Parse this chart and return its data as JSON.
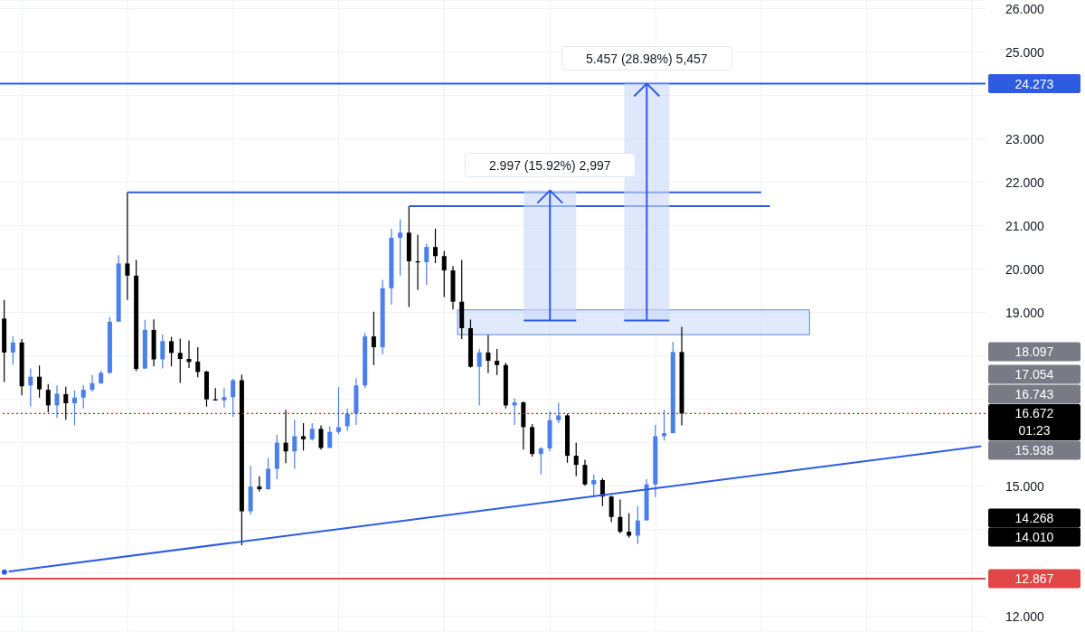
{
  "chart_data": {
    "type": "candlestick",
    "categories": [
      null,
      null,
      null,
      null,
      null,
      null,
      null,
      null,
      null,
      null,
      null,
      null,
      null,
      null,
      null,
      null,
      null,
      null,
      null,
      null,
      null,
      null,
      null,
      null,
      null,
      null,
      null,
      null,
      null,
      null,
      null,
      null,
      null,
      null,
      null,
      null,
      null,
      null,
      null,
      null,
      null,
      null,
      null,
      null,
      null,
      null,
      null,
      null,
      null,
      null,
      null,
      null,
      null,
      null,
      null,
      null,
      null,
      null,
      null,
      null,
      null,
      null,
      null,
      null,
      null,
      null,
      null,
      null,
      null,
      null,
      null,
      null,
      null,
      null,
      null,
      null,
      null,
      null,
      null,
      null,
      null,
      null,
      null,
      null,
      null,
      null,
      null,
      null,
      null,
      null,
      null,
      null,
      null,
      null,
      null,
      null,
      null,
      null,
      null,
      null,
      null,
      null,
      null,
      null,
      null,
      null,
      null,
      null,
      null,
      null,
      null,
      null
    ],
    "ohlc": [
      [
        18.86,
        19.29,
        17.4,
        18.08
      ],
      [
        18.08,
        18.45,
        17.8,
        18.31
      ],
      [
        18.31,
        18.39,
        17.09,
        17.3
      ],
      [
        17.32,
        17.71,
        16.83,
        17.52
      ],
      [
        17.52,
        17.78,
        17.04,
        17.23
      ],
      [
        17.22,
        17.35,
        16.7,
        16.86
      ],
      [
        16.86,
        17.32,
        16.57,
        17.13
      ],
      [
        17.12,
        17.29,
        16.53,
        16.91
      ],
      [
        16.91,
        17.21,
        16.4,
        17.04
      ],
      [
        17.04,
        17.33,
        16.79,
        17.22
      ],
      [
        17.22,
        17.56,
        17.18,
        17.37
      ],
      [
        17.37,
        17.66,
        17.35,
        17.61
      ],
      [
        17.61,
        18.9,
        17.59,
        18.79
      ],
      [
        18.79,
        20.32,
        18.79,
        20.13
      ],
      [
        20.13,
        21.77,
        19.29,
        19.85
      ],
      [
        19.85,
        20.21,
        17.65,
        17.7
      ],
      [
        17.71,
        18.83,
        17.7,
        18.6
      ],
      [
        18.6,
        18.84,
        17.76,
        17.92
      ],
      [
        17.92,
        18.5,
        17.71,
        18.34
      ],
      [
        18.34,
        18.44,
        17.76,
        18.07
      ],
      [
        18.07,
        18.4,
        17.38,
        17.93
      ],
      [
        17.93,
        18.36,
        17.72,
        17.86
      ],
      [
        17.87,
        18.2,
        17.51,
        17.63
      ],
      [
        17.64,
        17.66,
        16.83,
        17.0
      ],
      [
        17.0,
        17.26,
        16.97,
        16.98
      ],
      [
        16.98,
        17.26,
        16.81,
        17.05
      ],
      [
        17.05,
        17.48,
        16.6,
        17.44
      ],
      [
        17.44,
        17.57,
        13.64,
        14.42
      ],
      [
        14.42,
        15.47,
        14.34,
        14.99
      ],
      [
        14.99,
        15.23,
        14.88,
        14.93
      ],
      [
        14.93,
        15.65,
        14.92,
        15.4
      ],
      [
        15.4,
        16.18,
        15.16,
        16.0
      ],
      [
        16.0,
        16.76,
        15.53,
        15.8
      ],
      [
        15.8,
        16.53,
        15.4,
        16.15
      ],
      [
        16.15,
        16.45,
        15.82,
        16.08
      ],
      [
        16.08,
        16.45,
        16.05,
        16.32
      ],
      [
        16.32,
        16.4,
        15.84,
        15.88
      ],
      [
        15.88,
        16.38,
        15.88,
        16.25
      ],
      [
        16.25,
        17.28,
        16.2,
        16.36
      ],
      [
        16.38,
        16.79,
        16.27,
        16.67
      ],
      [
        16.67,
        17.49,
        16.41,
        17.32
      ],
      [
        17.32,
        18.53,
        17.26,
        18.45
      ],
      [
        18.45,
        19.02,
        17.79,
        18.2
      ],
      [
        18.2,
        19.75,
        18.04,
        19.56
      ],
      [
        19.56,
        20.93,
        19.18,
        20.72
      ],
      [
        20.72,
        21.15,
        19.85,
        20.84
      ],
      [
        20.84,
        21.45,
        19.13,
        20.18
      ],
      [
        20.18,
        20.79,
        19.52,
        20.16
      ],
      [
        20.16,
        20.58,
        19.64,
        20.51
      ],
      [
        20.51,
        20.93,
        20.14,
        20.3
      ],
      [
        20.3,
        20.42,
        19.36,
        19.97
      ],
      [
        19.97,
        20.07,
        19.07,
        19.25
      ],
      [
        19.25,
        20.21,
        18.39,
        18.64
      ],
      [
        18.64,
        18.84,
        17.73,
        17.75
      ],
      [
        17.75,
        18.16,
        16.86,
        18.08
      ],
      [
        18.08,
        18.48,
        17.61,
        17.89
      ],
      [
        17.89,
        18.16,
        17.56,
        17.79
      ],
      [
        17.79,
        17.84,
        16.79,
        16.86
      ],
      [
        16.86,
        17.02,
        16.41,
        16.93
      ],
      [
        16.93,
        16.95,
        15.84,
        16.36
      ],
      [
        16.36,
        16.43,
        15.68,
        15.74
      ],
      [
        15.74,
        15.9,
        15.27,
        15.87
      ],
      [
        15.87,
        16.72,
        15.8,
        16.52
      ],
      [
        16.52,
        16.92,
        16.45,
        16.63
      ],
      [
        16.63,
        16.67,
        15.54,
        15.7
      ],
      [
        15.7,
        16.0,
        15.23,
        15.49
      ],
      [
        15.49,
        15.61,
        15.01,
        15.04
      ],
      [
        15.04,
        15.27,
        14.75,
        15.14
      ],
      [
        15.14,
        15.18,
        14.54,
        14.76
      ],
      [
        14.76,
        14.78,
        14.17,
        14.29
      ],
      [
        14.29,
        14.69,
        13.91,
        13.95
      ],
      [
        13.95,
        14.38,
        13.81,
        13.86
      ],
      [
        13.86,
        14.54,
        13.67,
        14.21
      ],
      [
        14.21,
        15.16,
        14.21,
        15.04
      ],
      [
        15.04,
        16.41,
        14.75,
        16.15
      ],
      [
        16.15,
        16.76,
        16.05,
        16.22
      ],
      [
        16.22,
        18.32,
        16.22,
        18.09
      ],
      [
        18.09,
        18.67,
        16.4,
        16.67
      ],
      null,
      null,
      null,
      null,
      null,
      null,
      null,
      null,
      null,
      null,
      null,
      null,
      null,
      null,
      null,
      null,
      null,
      null,
      null,
      null,
      null,
      null,
      null,
      null,
      null,
      null,
      null,
      null,
      null,
      null,
      null,
      null,
      null,
      null
    ],
    "colors": [
      "#000000",
      "#4b7fe9",
      "#000000",
      "#4b7fe9",
      "#000000",
      "#000000",
      "#4b7fe9",
      "#000000",
      "#4b7fe9",
      "#4b7fe9",
      "#4b7fe9",
      "#4b7fe9",
      "#4b7fe9",
      "#4b7fe9",
      "#000000",
      "#000000",
      "#4b7fe9",
      "#000000",
      "#4b7fe9",
      "#000000",
      "#000000",
      "#000000",
      "#000000",
      "#000000",
      "#000000",
      "#4b7fe9",
      "#4b7fe9",
      "#000000",
      "#4b7fe9",
      "#000000",
      "#4b7fe9",
      "#4b7fe9",
      "#000000",
      "#4b7fe9",
      "#000000",
      "#4b7fe9",
      "#000000",
      "#4b7fe9",
      "#4b7fe9",
      "#4b7fe9",
      "#4b7fe9",
      "#4b7fe9",
      "#000000",
      "#4b7fe9",
      "#4b7fe9",
      "#4b7fe9",
      "#000000",
      "#000000",
      "#4b7fe9",
      "#000000",
      "#000000",
      "#000000",
      "#000000",
      "#000000",
      "#4b7fe9",
      "#000000",
      "#000000",
      "#000000",
      "#4b7fe9",
      "#000000",
      "#000000",
      "#4b7fe9",
      "#4b7fe9",
      "#4b7fe9",
      "#000000",
      "#000000",
      "#000000",
      "#4b7fe9",
      "#000000",
      "#000000",
      "#000000",
      "#000000",
      "#4b7fe9",
      "#4b7fe9",
      "#4b7fe9",
      "#4b7fe9",
      "#4b7fe9",
      "#000000",
      null,
      null,
      null,
      null,
      null,
      null,
      null,
      null,
      null,
      null,
      null,
      null,
      null,
      null,
      null,
      null,
      null,
      null,
      null,
      null,
      null,
      null,
      null,
      null,
      null,
      null,
      null,
      null,
      null,
      null,
      null,
      null,
      null,
      null
    ],
    "series": [
      {
        "type": "line",
        "color": "#2d5ce0",
        "values": [
          13.02,
          null,
          null,
          null,
          null,
          null,
          null,
          null,
          null,
          null,
          null,
          null,
          null,
          null,
          null,
          null,
          null,
          null,
          null,
          null,
          null,
          null,
          null,
          null,
          null,
          null,
          null,
          null,
          null,
          null,
          null,
          null,
          null,
          null,
          null,
          null,
          null,
          null,
          null,
          null,
          null,
          null,
          null,
          null,
          null,
          null,
          null,
          null,
          null,
          null,
          null,
          null,
          null,
          null,
          null,
          null,
          null,
          null,
          null,
          null,
          null,
          null,
          null,
          null,
          null,
          null,
          null,
          null,
          null,
          null,
          null,
          null,
          null,
          null,
          null,
          null,
          null,
          null,
          null,
          null,
          null,
          null,
          null,
          null,
          null,
          null,
          null,
          null,
          null,
          null,
          null,
          null,
          null,
          null,
          null,
          null,
          null,
          null,
          null,
          null,
          null,
          null,
          null,
          null,
          null,
          null,
          null,
          null,
          null,
          null,
          null,
          15.92
        ]
      },
      {
        "type": "line",
        "color": "#2d5ce0",
        "values": [
          null,
          null,
          null,
          null,
          null,
          null,
          null,
          null,
          null,
          null,
          null,
          null,
          null,
          null,
          21.77,
          null,
          null,
          null,
          null,
          null,
          null,
          null,
          null,
          null,
          null,
          null,
          null,
          null,
          null,
          null,
          null,
          null,
          null,
          null,
          null,
          null,
          null,
          null,
          null,
          null,
          null,
          null,
          null,
          null,
          null,
          null,
          null,
          null,
          null,
          null,
          null,
          null,
          null,
          null,
          null,
          null,
          null,
          null,
          null,
          null,
          null,
          null,
          null,
          null,
          null,
          null,
          null,
          null,
          null,
          null,
          null,
          null,
          null,
          null,
          null,
          null,
          null,
          null,
          null,
          null,
          null,
          null,
          null,
          null,
          null,
          null,
          21.77,
          null,
          null,
          null,
          null,
          null,
          null,
          null,
          null,
          null,
          null,
          null,
          null,
          null,
          null,
          null,
          null,
          null,
          null,
          null,
          null,
          null,
          null,
          null,
          null,
          null
        ]
      },
      {
        "type": "line",
        "color": "#2d5ce0",
        "values": [
          null,
          null,
          null,
          null,
          null,
          null,
          null,
          null,
          null,
          null,
          null,
          null,
          null,
          null,
          null,
          null,
          null,
          null,
          null,
          null,
          null,
          null,
          null,
          null,
          null,
          null,
          null,
          null,
          null,
          null,
          null,
          null,
          null,
          null,
          null,
          null,
          null,
          null,
          null,
          null,
          null,
          null,
          null,
          null,
          null,
          null,
          21.45,
          null,
          null,
          null,
          null,
          null,
          null,
          null,
          null,
          null,
          null,
          null,
          null,
          null,
          null,
          null,
          null,
          null,
          null,
          null,
          null,
          null,
          null,
          null,
          null,
          null,
          null,
          null,
          null,
          null,
          null,
          null,
          null,
          null,
          null,
          null,
          null,
          null,
          null,
          null,
          null,
          21.45,
          null,
          null,
          null,
          null,
          null,
          null,
          null,
          null,
          null,
          null,
          null,
          null,
          null,
          null,
          null,
          null,
          null,
          null,
          null,
          null,
          null,
          null,
          null,
          null
        ]
      }
    ],
    "ylim": [
      11.64,
      26.2
    ],
    "yticks": [
      {
        "value": 12,
        "label": "12.000"
      },
      {
        "value": 13,
        "label": null
      },
      {
        "value": 14,
        "label": null
      },
      {
        "value": 15,
        "label": "15.000"
      },
      {
        "value": 16,
        "label": null
      },
      {
        "value": 17,
        "label": null
      },
      {
        "value": 18,
        "label": null
      },
      {
        "value": 19,
        "label": "19.000"
      },
      {
        "value": 20,
        "label": "20.000"
      },
      {
        "value": 21,
        "label": "21.000"
      },
      {
        "value": 22,
        "label": "22.000"
      },
      {
        "value": 23,
        "label": "23.000"
      },
      {
        "value": 24,
        "label": null
      },
      {
        "value": 25,
        "label": "25.000"
      },
      {
        "value": 26,
        "label": "26.000"
      }
    ],
    "tick_labels": "y",
    "grid": true,
    "ref_lines": [
      {
        "axis": "y",
        "value": 24.273,
        "label": "24.273",
        "color": "#2d5ce0",
        "line_style": "solid"
      },
      {
        "axis": "y",
        "value": 12.867,
        "label": "12.867",
        "color": "#e04646",
        "line_style": "solid"
      },
      {
        "axis": "y",
        "value": 16.672,
        "label": "16.672",
        "color": "#b22222",
        "line_style": "dotted"
      }
    ],
    "bands": [
      {
        "axis": "y",
        "from": 18.49,
        "to": 19.06,
        "color": "#c9d8f7"
      }
    ],
    "annotations": [
      "01:23",
      "18.097",
      "17.054",
      "16.743",
      "15.938",
      "14.268",
      "14.010",
      {
        "text": "2.997 (15.92%) 2,997",
        "y": 21.813
      },
      {
        "text": "5.457 (28.98%) 5,457",
        "y": 24.273
      }
    ]
  }
}
